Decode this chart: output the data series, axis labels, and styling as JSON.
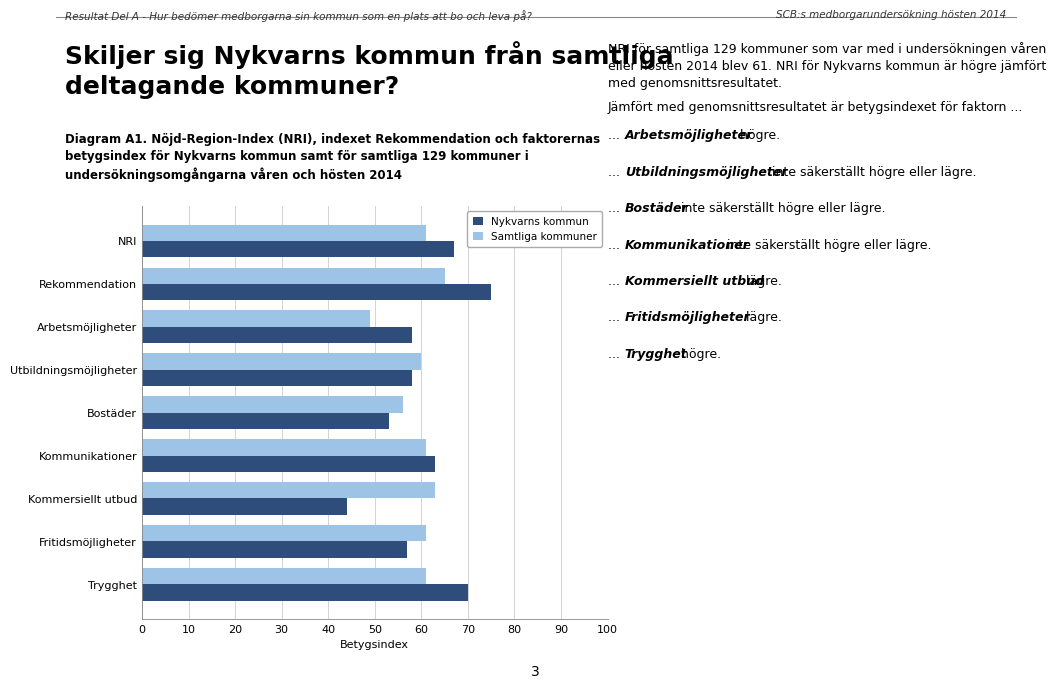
{
  "categories": [
    "NRI",
    "Rekommendation",
    "Arbetsmöjligheter",
    "Utbildningsmöjligheter",
    "Bostäder",
    "Kommunikationer",
    "Kommersiellt utbud",
    "Fritidsmöjligheter",
    "Trygghet"
  ],
  "nykvarn": [
    67,
    75,
    58,
    58,
    53,
    63,
    44,
    57,
    70
  ],
  "samtliga": [
    61,
    65,
    49,
    60,
    56,
    61,
    63,
    61,
    61
  ],
  "color_nykvarn": "#2E4D7B",
  "color_samtliga": "#9DC3E6",
  "legend_nykvarn": "Nykvarns kommun",
  "legend_samtliga": "Samtliga kommuner",
  "xlabel": "Betygsindex",
  "xlim": [
    0,
    100
  ],
  "xticks": [
    0,
    10,
    20,
    30,
    40,
    50,
    60,
    70,
    80,
    90,
    100
  ],
  "bar_height": 0.38,
  "header_left": "Resultat Del A - Hur bedömer medborgarna sin kommun som en plats att bo och leva på?",
  "header_right": "SCB:s medborgarundersökning hösten 2014",
  "big_title": "Skiljer sig Nykvarns kommun från samtliga\ndeltagande kommuner?",
  "diagram_title": "Diagram A1. Nöjd-Region-Index (NRI), indexet Rekommendation och faktorernas\nbetygsindex för Nykvarns kommun samt för samtliga 129 kommuner i\nundersökningsomgångarna våren och hösten 2014",
  "right_text_para1": "NRI för samtliga 129 kommuner som var med i undersökningen våren\neller hösten 2014 blev 61. NRI för Nykvarns kommun är högre jämfört\nmed genomsnittsresultatet.",
  "right_text_para2": "Jämfört med genomsnittsresultatet är betygsindexet för faktorn ...",
  "right_bullets": [
    [
      "... ",
      "Arbetsmöjligheter",
      " högre."
    ],
    [
      "... ",
      "Utbildningsmöjligheter",
      " inte säkerställt högre eller lägre."
    ],
    [
      "... ",
      "Bostäder",
      " inte säkerställt högre eller lägre."
    ],
    [
      "... ",
      "Kommunikationer",
      " inte säkerställt högre eller lägre."
    ],
    [
      "... ",
      "Kommersiellt utbud",
      " lägre."
    ],
    [
      "... ",
      "Fritidsmöjligheter",
      " lägre."
    ],
    [
      "... ",
      "Trygghet",
      " högre."
    ]
  ],
  "page_number": "3",
  "figure_facecolor": "#FFFFFF"
}
